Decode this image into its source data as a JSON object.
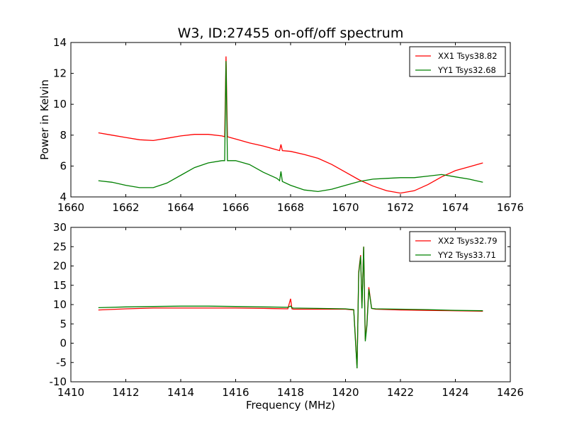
{
  "title": "W3, ID:27455 on-off/off spectrum",
  "colors": {
    "xx": "#ff0000",
    "yy": "#008000",
    "axis": "#000000"
  },
  "chart_data": [
    {
      "type": "line",
      "ylabel": "Power in Kelvin",
      "xlim": [
        1660,
        1676
      ],
      "ylim": [
        4,
        14
      ],
      "xticks": [
        1660,
        1662,
        1664,
        1666,
        1668,
        1670,
        1672,
        1674,
        1676
      ],
      "yticks": [
        4,
        6,
        8,
        10,
        12,
        14
      ],
      "legend": "top-right",
      "series": [
        {
          "name": "XX1 Tsys38.82",
          "color": "#ff0000",
          "x": [
            1661.0,
            1661.5,
            1662.0,
            1662.5,
            1663.0,
            1663.5,
            1664.0,
            1664.5,
            1665.0,
            1665.5,
            1665.6,
            1665.65,
            1665.7,
            1665.8,
            1666.0,
            1666.5,
            1667.0,
            1667.5,
            1667.6,
            1667.65,
            1667.7,
            1668.0,
            1668.5,
            1669.0,
            1669.5,
            1670.0,
            1670.5,
            1671.0,
            1671.5,
            1672.0,
            1672.5,
            1673.0,
            1673.5,
            1674.0,
            1674.5,
            1675.0
          ],
          "y": [
            8.15,
            8.0,
            7.85,
            7.7,
            7.65,
            7.8,
            7.95,
            8.05,
            8.05,
            7.95,
            7.9,
            13.1,
            7.9,
            7.85,
            7.75,
            7.5,
            7.3,
            7.05,
            7.0,
            7.4,
            7.0,
            6.95,
            6.75,
            6.5,
            6.1,
            5.6,
            5.1,
            4.7,
            4.4,
            4.25,
            4.4,
            4.8,
            5.3,
            5.7,
            5.95,
            6.2
          ]
        },
        {
          "name": "YY1 Tsys32.68",
          "color": "#008000",
          "x": [
            1661.0,
            1661.5,
            1662.0,
            1662.5,
            1663.0,
            1663.5,
            1664.0,
            1664.5,
            1665.0,
            1665.5,
            1665.6,
            1665.65,
            1665.7,
            1665.8,
            1666.0,
            1666.5,
            1667.0,
            1667.5,
            1667.6,
            1667.65,
            1667.7,
            1668.0,
            1668.5,
            1669.0,
            1669.5,
            1670.0,
            1670.5,
            1671.0,
            1671.5,
            1672.0,
            1672.5,
            1673.0,
            1673.5,
            1674.0,
            1674.5,
            1675.0
          ],
          "y": [
            5.05,
            4.95,
            4.75,
            4.6,
            4.6,
            4.9,
            5.4,
            5.9,
            6.2,
            6.35,
            6.35,
            12.8,
            6.35,
            6.35,
            6.35,
            6.1,
            5.6,
            5.2,
            5.05,
            5.65,
            5.0,
            4.75,
            4.45,
            4.35,
            4.5,
            4.75,
            5.0,
            5.15,
            5.2,
            5.25,
            5.25,
            5.35,
            5.45,
            5.3,
            5.15,
            4.95
          ]
        }
      ]
    },
    {
      "type": "line",
      "xlabel": "Frequency (MHz)",
      "xlim": [
        1410,
        1426
      ],
      "ylim": [
        -10,
        30
      ],
      "xticks": [
        1410,
        1412,
        1414,
        1416,
        1418,
        1420,
        1422,
        1424,
        1426
      ],
      "yticks": [
        -10,
        -5,
        0,
        5,
        10,
        15,
        20,
        25,
        30
      ],
      "legend": "top-right",
      "series": [
        {
          "name": "XX2 Tsys32.79",
          "color": "#ff0000",
          "x": [
            1411.0,
            1412.0,
            1413.0,
            1414.0,
            1415.0,
            1416.0,
            1417.0,
            1417.9,
            1418.0,
            1418.05,
            1418.1,
            1419.0,
            1420.0,
            1420.3,
            1420.35,
            1420.42,
            1420.48,
            1420.55,
            1420.6,
            1420.66,
            1420.72,
            1420.78,
            1420.85,
            1420.95,
            1421.1,
            1422.0,
            1423.0,
            1424.0,
            1425.0
          ],
          "y": [
            8.6,
            8.9,
            9.1,
            9.1,
            9.1,
            9.1,
            9.0,
            8.9,
            11.5,
            8.9,
            8.8,
            8.8,
            8.8,
            8.6,
            2.5,
            -6.5,
            18.5,
            22.8,
            9.5,
            25.0,
            1.0,
            5.0,
            14.5,
            9.0,
            8.8,
            8.6,
            8.5,
            8.4,
            8.3
          ]
        },
        {
          "name": "YY2 Tsys33.71",
          "color": "#008000",
          "x": [
            1411.0,
            1412.0,
            1413.0,
            1414.0,
            1415.0,
            1416.0,
            1417.0,
            1417.9,
            1418.0,
            1418.05,
            1418.1,
            1419.0,
            1420.0,
            1420.3,
            1420.35,
            1420.42,
            1420.48,
            1420.55,
            1420.6,
            1420.66,
            1420.72,
            1420.78,
            1420.85,
            1420.95,
            1421.1,
            1422.0,
            1423.0,
            1424.0,
            1425.0
          ],
          "y": [
            9.2,
            9.4,
            9.5,
            9.6,
            9.6,
            9.5,
            9.4,
            9.3,
            9.6,
            9.2,
            9.1,
            9.0,
            8.9,
            8.7,
            2.0,
            -6.5,
            18.0,
            22.5,
            9.0,
            25.0,
            0.5,
            4.5,
            14.0,
            9.0,
            8.9,
            8.8,
            8.7,
            8.5,
            8.4
          ]
        }
      ]
    }
  ]
}
